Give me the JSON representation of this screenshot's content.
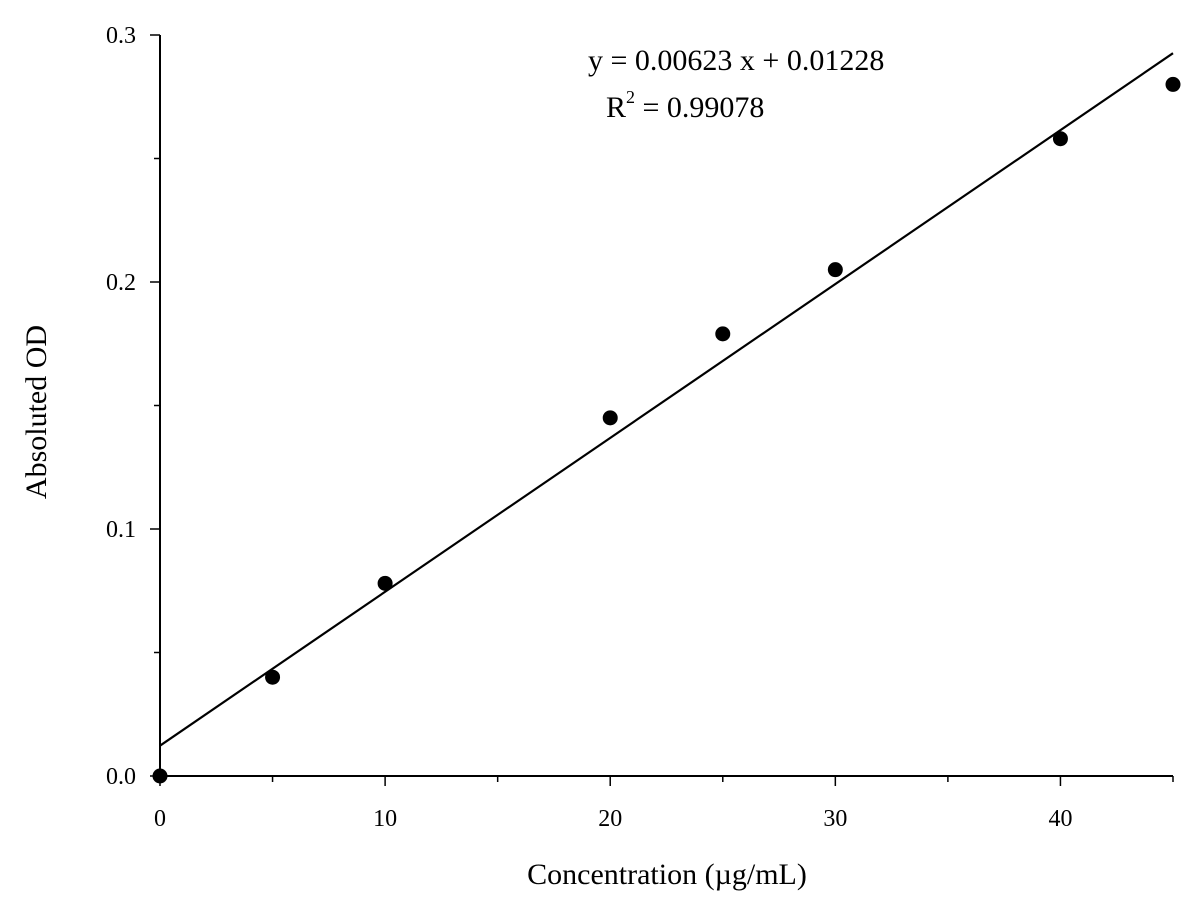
{
  "chart_data": {
    "type": "scatter",
    "title": "",
    "xlabel": "Concentration (µg/mL)",
    "ylabel": "Absoluted OD",
    "xlim": [
      0,
      45
    ],
    "ylim": [
      0,
      0.3
    ],
    "x_major_ticks": [
      0,
      10,
      20,
      30,
      40
    ],
    "x_minor_ticks": [
      5,
      15,
      25,
      35,
      45
    ],
    "y_major_ticks": [
      0.0,
      0.1,
      0.2,
      0.3
    ],
    "y_minor_ticks": [
      0.05,
      0.15,
      0.25
    ],
    "x_tick_labels": [
      "0",
      "10",
      "20",
      "30",
      "40"
    ],
    "y_tick_labels": [
      "0.0",
      "0.1",
      "0.2",
      "0.3"
    ],
    "grid": false,
    "series": [
      {
        "x": [
          0,
          5,
          10,
          20,
          25,
          30,
          40,
          45
        ],
        "y": [
          0.0,
          0.04,
          0.078,
          0.145,
          0.179,
          0.205,
          0.258,
          0.28
        ],
        "marker": "circle",
        "color": "#000000"
      }
    ],
    "fit": {
      "slope": 0.00623,
      "intercept": 0.01228,
      "color": "#000000"
    },
    "annotations": {
      "equation": "y = 0.00623 x + 0.01228",
      "r2_base": "R",
      "r2_exponent": "2",
      "r2_value": " = 0.99078"
    }
  }
}
